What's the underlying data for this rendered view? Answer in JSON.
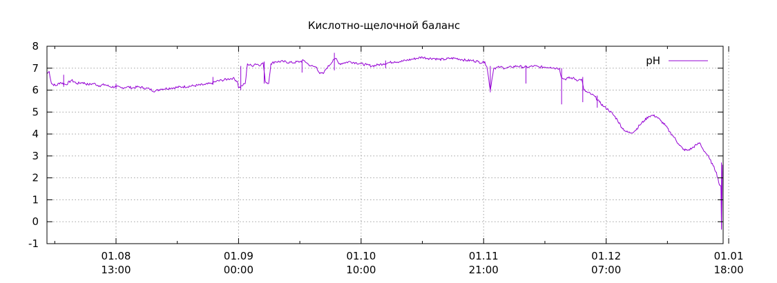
{
  "chart_data": {
    "type": "line",
    "title": "Кислотно-щелочной баланс",
    "xlabel": "",
    "ylabel": "",
    "ylim": [
      -1,
      8
    ],
    "yticks": [
      -1,
      0,
      1,
      2,
      3,
      4,
      5,
      6,
      7,
      8
    ],
    "grid": true,
    "legend": "top-right",
    "color": "#9400d3",
    "xlim": [
      "01.08 00:00",
      "01.01 23:00"
    ],
    "xticks": [
      {
        "t": 13,
        "date": "01.08",
        "time": "13:00"
      },
      {
        "t": 24,
        "date": "01.09",
        "time": "00:00"
      },
      {
        "t": 35,
        "date": "01.10",
        "time": "10:00"
      },
      {
        "t": 46,
        "date": "01.11",
        "time": "21:00"
      },
      {
        "t": 57,
        "date": "01.12",
        "time": "07:00"
      },
      {
        "t": 68,
        "date": "01.01",
        "time": "18:00"
      }
    ],
    "series": [
      {
        "name": "pH",
        "points": [
          [
            6.8,
            6.75
          ],
          [
            7.0,
            6.85
          ],
          [
            7.2,
            6.3
          ],
          [
            7.6,
            6.2
          ],
          [
            8.0,
            6.35
          ],
          [
            8.5,
            6.25
          ],
          [
            9.0,
            6.45
          ],
          [
            9.5,
            6.3
          ],
          [
            10.0,
            6.35
          ],
          [
            10.5,
            6.25
          ],
          [
            11.0,
            6.3
          ],
          [
            11.5,
            6.2
          ],
          [
            12.0,
            6.25
          ],
          [
            12.5,
            6.15
          ],
          [
            13.0,
            6.15
          ],
          [
            13.5,
            6.1
          ],
          [
            14.0,
            6.15
          ],
          [
            14.5,
            6.1
          ],
          [
            15.0,
            6.15
          ],
          [
            15.5,
            6.1
          ],
          [
            16.0,
            6.05
          ],
          [
            16.5,
            5.95
          ],
          [
            17.0,
            6.05
          ],
          [
            18.0,
            6.1
          ],
          [
            19.0,
            6.15
          ],
          [
            20.0,
            6.2
          ],
          [
            21.0,
            6.25
          ],
          [
            21.5,
            6.3
          ],
          [
            22.0,
            6.4
          ],
          [
            22.5,
            6.45
          ],
          [
            23.0,
            6.5
          ],
          [
            23.5,
            6.55
          ],
          [
            23.9,
            6.4
          ],
          [
            24.0,
            6.1
          ],
          [
            24.3,
            6.2
          ],
          [
            24.6,
            6.3
          ],
          [
            24.8,
            7.2
          ],
          [
            25.2,
            7.1
          ],
          [
            25.5,
            7.2
          ],
          [
            26.0,
            7.15
          ],
          [
            26.2,
            7.25
          ],
          [
            26.4,
            6.4
          ],
          [
            26.7,
            6.3
          ],
          [
            26.9,
            7.2
          ],
          [
            27.3,
            7.3
          ],
          [
            28.0,
            7.3
          ],
          [
            28.8,
            7.25
          ],
          [
            29.5,
            7.3
          ],
          [
            29.9,
            7.35
          ],
          [
            30.2,
            7.2
          ],
          [
            30.5,
            7.1
          ],
          [
            31.0,
            7.05
          ],
          [
            31.3,
            6.75
          ],
          [
            31.6,
            6.75
          ],
          [
            31.9,
            7.0
          ],
          [
            32.2,
            7.15
          ],
          [
            32.5,
            7.4
          ],
          [
            32.7,
            7.45
          ],
          [
            33.0,
            7.2
          ],
          [
            33.5,
            7.25
          ],
          [
            34.0,
            7.3
          ],
          [
            34.5,
            7.25
          ],
          [
            35.0,
            7.2
          ],
          [
            35.5,
            7.15
          ],
          [
            36.0,
            7.1
          ],
          [
            36.5,
            7.15
          ],
          [
            37.0,
            7.2
          ],
          [
            37.5,
            7.25
          ],
          [
            38.0,
            7.3
          ],
          [
            38.5,
            7.3
          ],
          [
            39.0,
            7.35
          ],
          [
            39.5,
            7.4
          ],
          [
            40.0,
            7.45
          ],
          [
            40.5,
            7.5
          ],
          [
            41.0,
            7.45
          ],
          [
            41.5,
            7.45
          ],
          [
            42.0,
            7.4
          ],
          [
            42.5,
            7.4
          ],
          [
            43.0,
            7.45
          ],
          [
            43.5,
            7.45
          ],
          [
            44.0,
            7.4
          ],
          [
            44.5,
            7.35
          ],
          [
            45.0,
            7.35
          ],
          [
            45.5,
            7.3
          ],
          [
            45.9,
            7.25
          ],
          [
            46.1,
            7.3
          ],
          [
            46.3,
            7.05
          ],
          [
            46.6,
            6.0
          ],
          [
            46.9,
            7.0
          ],
          [
            47.5,
            7.05
          ],
          [
            48.0,
            7.0
          ],
          [
            48.5,
            7.05
          ],
          [
            49.0,
            7.1
          ],
          [
            49.5,
            7.05
          ],
          [
            50.0,
            7.05
          ],
          [
            50.5,
            7.1
          ],
          [
            51.0,
            7.05
          ],
          [
            51.5,
            7.05
          ],
          [
            52.0,
            7.05
          ],
          [
            52.5,
            7.0
          ],
          [
            52.8,
            7.0
          ],
          [
            53.0,
            6.55
          ],
          [
            53.3,
            6.5
          ],
          [
            53.6,
            6.55
          ],
          [
            54.0,
            6.55
          ],
          [
            54.5,
            6.45
          ],
          [
            54.8,
            6.5
          ],
          [
            55.0,
            6.0
          ],
          [
            55.3,
            5.9
          ],
          [
            55.7,
            5.8
          ],
          [
            56.0,
            5.7
          ],
          [
            56.4,
            5.45
          ],
          [
            56.8,
            5.25
          ],
          [
            57.2,
            5.1
          ],
          [
            57.6,
            4.9
          ],
          [
            58.0,
            4.65
          ],
          [
            58.4,
            4.3
          ],
          [
            58.8,
            4.1
          ],
          [
            59.2,
            4.05
          ],
          [
            59.6,
            4.15
          ],
          [
            60.0,
            4.4
          ],
          [
            60.4,
            4.6
          ],
          [
            60.8,
            4.8
          ],
          [
            61.1,
            4.85
          ],
          [
            61.5,
            4.8
          ],
          [
            61.9,
            4.6
          ],
          [
            62.3,
            4.4
          ],
          [
            62.7,
            4.1
          ],
          [
            63.1,
            3.85
          ],
          [
            63.5,
            3.55
          ],
          [
            63.9,
            3.3
          ],
          [
            64.3,
            3.25
          ],
          [
            64.7,
            3.35
          ],
          [
            65.1,
            3.5
          ],
          [
            65.4,
            3.6
          ],
          [
            65.7,
            3.3
          ],
          [
            66.0,
            3.1
          ],
          [
            66.3,
            2.85
          ],
          [
            66.6,
            2.55
          ],
          [
            66.9,
            2.25
          ],
          [
            67.1,
            1.8
          ],
          [
            67.3,
            1.6
          ],
          [
            67.35,
            -0.35
          ],
          [
            67.45,
            2.6
          ]
        ],
        "spikes": [
          [
            8.3,
            6.15,
            6.7
          ],
          [
            13.0,
            6.05,
            6.3
          ],
          [
            21.7,
            6.25,
            6.6
          ],
          [
            24.2,
            6.0,
            7.1
          ],
          [
            26.3,
            6.3,
            7.3
          ],
          [
            29.7,
            6.8,
            7.35
          ],
          [
            32.6,
            6.9,
            7.7
          ],
          [
            37.2,
            7.0,
            7.35
          ],
          [
            46.6,
            5.9,
            7.1
          ],
          [
            49.8,
            6.3,
            7.1
          ],
          [
            53.0,
            5.35,
            7.0
          ],
          [
            54.9,
            5.45,
            6.6
          ],
          [
            56.2,
            5.2,
            5.75
          ],
          [
            67.35,
            -0.35,
            2.7
          ]
        ]
      }
    ]
  }
}
